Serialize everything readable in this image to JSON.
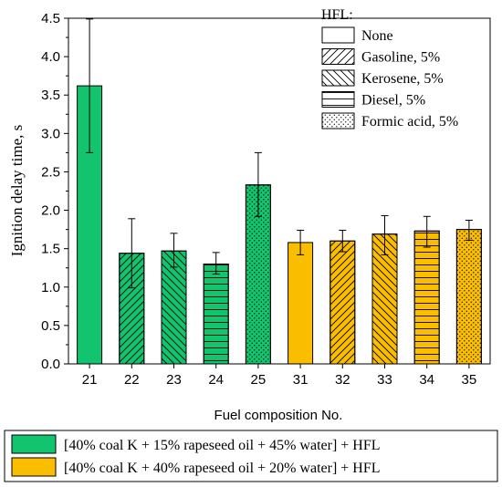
{
  "chart_data": {
    "type": "bar",
    "ylabel": "Ignition delay time, s",
    "xlabel": "Fuel composition No.",
    "ylim": [
      0,
      4.5
    ],
    "yticks": [
      "0.0",
      "0.5",
      "1.0",
      "1.5",
      "2.0",
      "2.5",
      "3.0",
      "3.5",
      "4.0",
      "4.5"
    ],
    "categories": [
      "21",
      "22",
      "23",
      "24",
      "25",
      "31",
      "32",
      "33",
      "34",
      "35"
    ],
    "values": [
      3.62,
      1.44,
      1.47,
      1.3,
      2.33,
      1.58,
      1.6,
      1.69,
      1.73,
      1.75
    ],
    "err_low": [
      0.87,
      0.45,
      0.21,
      0.13,
      0.41,
      0.16,
      0.14,
      0.27,
      0.21,
      0.14
    ],
    "err_high": [
      0.87,
      0.45,
      0.23,
      0.15,
      0.42,
      0.16,
      0.14,
      0.24,
      0.19,
      0.12
    ],
    "patterns": [
      "none",
      "gasoline",
      "kerosene",
      "diesel",
      "formic",
      "none",
      "gasoline",
      "kerosene",
      "diesel",
      "formic"
    ],
    "groups": [
      0,
      0,
      0,
      0,
      0,
      1,
      1,
      1,
      1,
      1
    ],
    "grid": false,
    "hfl_legend": {
      "title": "HFL:",
      "placement": "top-right",
      "items": [
        {
          "pattern": "none",
          "label": "None"
        },
        {
          "pattern": "gasoline",
          "label": "Gasoline, 5%"
        },
        {
          "pattern": "kerosene",
          "label": "Kerosene, 5%"
        },
        {
          "pattern": "diesel",
          "label": "Diesel, 5%"
        },
        {
          "pattern": "formic",
          "label": "Formic acid, 5%"
        }
      ]
    },
    "group_legend": {
      "placement": "bottom",
      "items": [
        {
          "color": "#13c46f",
          "label": "[40% coal K + 15% rapeseed oil + 45% water] + HFL"
        },
        {
          "color": "#fbbd00",
          "label": "[40% coal K + 40% rapeseed oil + 20% water] + HFL"
        }
      ]
    }
  }
}
